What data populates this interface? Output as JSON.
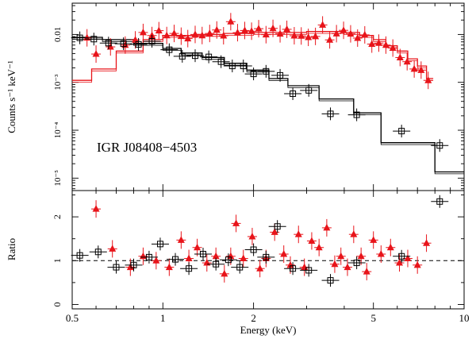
{
  "chart_data": [
    {
      "type": "scatter",
      "panel": "spectrum",
      "title": "",
      "annotation": "IGR J08408−4503",
      "xlabel": "",
      "ylabel": "Counts s⁻¹ keV⁻¹",
      "xscale": "log",
      "yscale": "log",
      "xlim": [
        0.5,
        10
      ],
      "ylim": [
        5.5e-06,
        0.045
      ],
      "xticks": [
        0.5,
        1,
        2,
        5,
        10
      ],
      "yticks": [
        1e-05,
        0.0001,
        0.001,
        0.01
      ],
      "ytick_labels": [
        "10⁻⁵",
        "10⁻⁴",
        "10⁻³",
        "0.01"
      ],
      "series": [
        {
          "name": "red data",
          "color": "#e8141a",
          "marker": "triangle",
          "x": [
            0.56,
            0.6,
            0.67,
            0.75,
            0.81,
            0.86,
            0.92,
            0.97,
            1.03,
            1.09,
            1.15,
            1.21,
            1.28,
            1.35,
            1.43,
            1.51,
            1.59,
            1.68,
            1.77,
            1.87,
            1.97,
            2.08,
            2.2,
            2.32,
            2.45,
            2.58,
            2.73,
            2.88,
            3.04,
            3.21,
            3.39,
            3.58,
            3.77,
            3.98,
            4.2,
            4.43,
            4.68,
            4.94,
            5.21,
            5.5,
            5.8,
            6.13,
            6.47,
            6.83,
            7.2,
            7.6
          ],
          "y": [
            0.0085,
            0.0039,
            0.0055,
            0.006,
            0.0077,
            0.011,
            0.0095,
            0.012,
            0.0095,
            0.0105,
            0.0092,
            0.0082,
            0.01,
            0.0095,
            0.0105,
            0.0124,
            0.0094,
            0.0185,
            0.0109,
            0.0121,
            0.0117,
            0.0132,
            0.0099,
            0.0134,
            0.0103,
            0.0128,
            0.0094,
            0.0093,
            0.0087,
            0.0091,
            0.0158,
            0.0077,
            0.0104,
            0.0122,
            0.0103,
            0.0084,
            0.0098,
            0.0063,
            0.0066,
            0.006,
            0.0052,
            0.0033,
            0.0027,
            0.0019,
            0.0018,
            0.0011
          ]
        },
        {
          "name": "black data",
          "color": "#000000",
          "marker": "open-square",
          "x": [
            0.53,
            0.59,
            0.66,
            0.74,
            0.83,
            0.92,
            1.05,
            1.16,
            1.28,
            1.42,
            1.56,
            1.7,
            1.85,
            2.0,
            2.2,
            2.45,
            2.7,
            3.05,
            3.6,
            4.4,
            6.2,
            8.3
          ],
          "y": [
            0.0085,
            0.008,
            0.0066,
            0.0064,
            0.0062,
            0.0072,
            0.0048,
            0.0035,
            0.0036,
            0.0034,
            0.0027,
            0.0022,
            0.0022,
            0.0015,
            0.0017,
            0.0014,
            0.00058,
            0.00068,
            0.00022,
            0.00021,
            9.6e-05,
            4.8e-05
          ]
        }
      ],
      "models": [
        {
          "name": "red model",
          "color": "#e8141a",
          "edges": [
            0.5,
            0.58,
            0.7,
            0.86,
            1.0,
            1.3,
            1.6,
            2.0,
            3.0,
            4.0,
            4.5,
            5.0,
            5.5,
            6.0,
            6.5,
            7.0,
            7.5,
            7.9
          ],
          "values": [
            0.0011,
            0.0019,
            0.0045,
            0.0078,
            0.0095,
            0.01,
            0.0105,
            0.011,
            0.0115,
            0.011,
            0.0095,
            0.0078,
            0.0058,
            0.0045,
            0.0031,
            0.0022,
            0.0012
          ]
        },
        {
          "name": "black model",
          "color": "#000000",
          "edges": [
            0.5,
            0.63,
            0.8,
            1.0,
            1.15,
            1.35,
            1.6,
            1.9,
            2.25,
            2.6,
            3.3,
            4.3,
            5.3,
            8.0,
            10.0
          ],
          "values": [
            0.0087,
            0.0078,
            0.0065,
            0.0051,
            0.0041,
            0.0033,
            0.0025,
            0.0018,
            0.0012,
            0.00085,
            0.00045,
            0.00023,
            5.5e-05,
            1.35e-05
          ]
        }
      ]
    },
    {
      "type": "scatter",
      "panel": "ratio",
      "title": "",
      "xlabel": "Energy (keV)",
      "ylabel": "Ratio",
      "xscale": "log",
      "yscale": "linear",
      "xlim": [
        0.5,
        10
      ],
      "ylim": [
        -0.1,
        2.6
      ],
      "xticks": [
        0.5,
        1,
        2,
        5,
        10
      ],
      "xtick_labels": [
        "0.5",
        "1",
        "2",
        "5",
        "10"
      ],
      "yticks": [
        0,
        1,
        2
      ],
      "reference_line": 1,
      "series": [
        {
          "name": "red ratio",
          "color": "#e8141a",
          "marker": "triangle",
          "x": [
            0.6,
            0.68,
            0.78,
            0.86,
            0.95,
            1.05,
            1.15,
            1.22,
            1.3,
            1.4,
            1.5,
            1.6,
            1.68,
            1.75,
            1.85,
            1.98,
            2.1,
            2.2,
            2.35,
            2.52,
            2.65,
            2.82,
            2.95,
            3.12,
            3.3,
            3.5,
            3.72,
            3.9,
            4.1,
            4.3,
            4.55,
            4.75,
            5.0,
            5.3,
            5.7,
            6.1,
            6.5,
            7.0,
            7.5
          ],
          "y": [
            2.18,
            1.27,
            0.85,
            1.1,
            1.0,
            0.85,
            1.47,
            1.05,
            1.3,
            0.95,
            1.1,
            0.7,
            1.1,
            1.85,
            1.05,
            1.55,
            0.82,
            1.05,
            1.65,
            1.15,
            0.9,
            1.6,
            0.85,
            1.45,
            1.3,
            1.75,
            0.92,
            1.1,
            0.85,
            1.6,
            1.1,
            0.75,
            1.47,
            1.15,
            1.3,
            0.95,
            1.05,
            0.9,
            1.4
          ]
        },
        {
          "name": "black ratio",
          "color": "#000000",
          "marker": "open-square",
          "x": [
            0.53,
            0.61,
            0.7,
            0.8,
            0.9,
            0.98,
            1.1,
            1.22,
            1.36,
            1.5,
            1.65,
            1.8,
            2.0,
            2.2,
            2.4,
            2.7,
            3.05,
            3.6,
            4.4,
            6.2,
            8.3
          ],
          "y": [
            1.12,
            1.2,
            0.85,
            0.9,
            1.08,
            1.38,
            1.03,
            0.82,
            1.15,
            0.92,
            1.02,
            0.85,
            1.25,
            1.08,
            1.78,
            0.82,
            0.78,
            0.55,
            0.95,
            1.1,
            2.35
          ]
        }
      ]
    }
  ]
}
